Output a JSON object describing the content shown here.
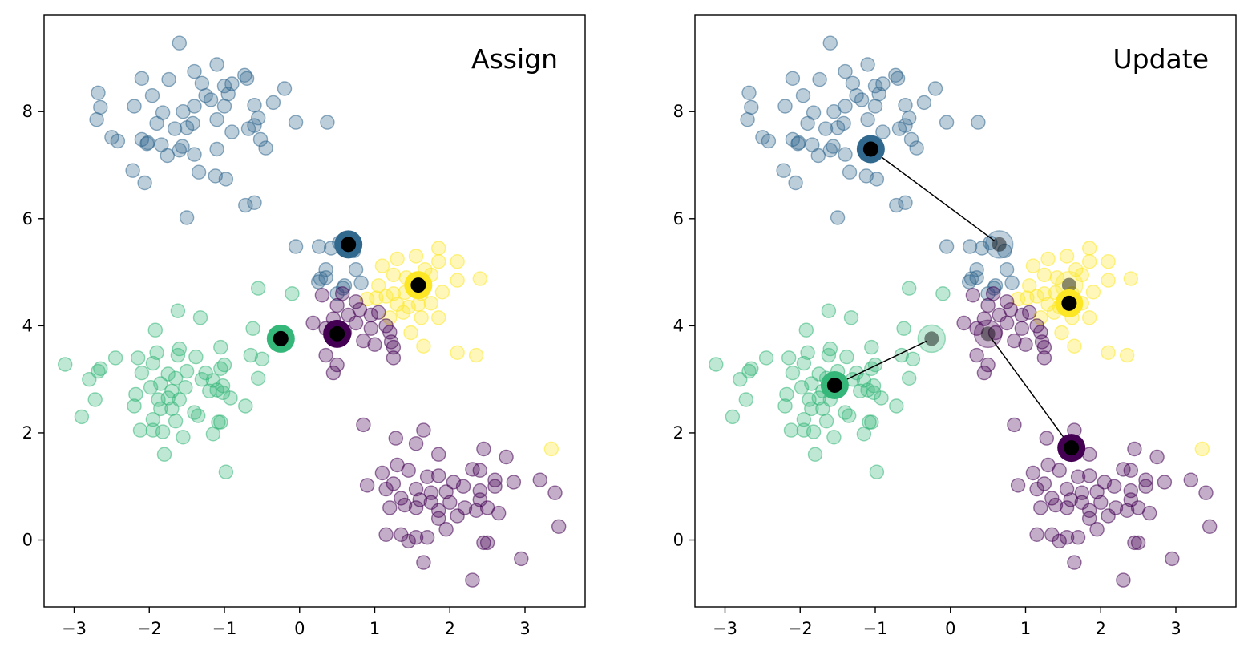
{
  "chart_data": [
    {
      "type": "scatter",
      "title": "Assign",
      "xlim": [
        -3.4,
        3.8
      ],
      "ylim": [
        -1.25,
        9.8
      ],
      "xticks": [
        -3,
        -2,
        -1,
        0,
        1,
        2,
        3
      ],
      "yticks": [
        0,
        2,
        4,
        6,
        8
      ],
      "xtick_labels": [
        "−3",
        "−2",
        "−1",
        "0",
        "1",
        "2",
        "3"
      ],
      "ytick_labels": [
        "0",
        "2",
        "4",
        "6",
        "8"
      ],
      "grid": false,
      "centroids": [
        {
          "cluster": 0,
          "x": 0.5,
          "y": 3.85
        },
        {
          "cluster": 1,
          "x": 0.65,
          "y": 5.52
        },
        {
          "cluster": 2,
          "x": -0.25,
          "y": 3.76
        },
        {
          "cluster": 3,
          "x": 1.58,
          "y": 4.76
        }
      ]
    },
    {
      "type": "scatter",
      "title": "Update",
      "xlim": [
        -3.4,
        3.8
      ],
      "ylim": [
        -1.25,
        9.8
      ],
      "xticks": [
        -3,
        -2,
        -1,
        0,
        1,
        2,
        3
      ],
      "yticks": [
        0,
        2,
        4,
        6,
        8
      ],
      "xtick_labels": [
        "−3",
        "−2",
        "−1",
        "0",
        "1",
        "2",
        "3"
      ],
      "ytick_labels": [
        "0",
        "2",
        "4",
        "6",
        "8"
      ],
      "grid": false,
      "old_centroids": [
        {
          "cluster": 0,
          "x": 0.5,
          "y": 3.85
        },
        {
          "cluster": 1,
          "x": 0.65,
          "y": 5.52
        },
        {
          "cluster": 2,
          "x": -0.25,
          "y": 3.76
        },
        {
          "cluster": 3,
          "x": 1.58,
          "y": 4.76
        }
      ],
      "centroids": [
        {
          "cluster": 0,
          "x": 1.61,
          "y": 1.72
        },
        {
          "cluster": 1,
          "x": -1.06,
          "y": 7.3
        },
        {
          "cluster": 2,
          "x": -1.54,
          "y": 2.89
        },
        {
          "cluster": 3,
          "x": 1.58,
          "y": 4.42
        }
      ]
    }
  ],
  "cluster_colors": [
    "#440154",
    "#31688e",
    "#35b779",
    "#fde725"
  ],
  "points": [
    {
      "c": 1,
      "pts": [
        [
          -1.6,
          9.28
        ],
        [
          -1.1,
          8.88
        ],
        [
          -1.4,
          8.75
        ],
        [
          -2.1,
          8.62
        ],
        [
          -1.74,
          8.6
        ],
        [
          -0.73,
          8.68
        ],
        [
          -0.7,
          8.62
        ],
        [
          -2.68,
          8.35
        ],
        [
          -1.3,
          8.53
        ],
        [
          -1.0,
          8.48
        ],
        [
          -0.9,
          8.52
        ],
        [
          -0.2,
          8.43
        ],
        [
          -2.65,
          8.08
        ],
        [
          -2.2,
          8.1
        ],
        [
          -1.96,
          8.3
        ],
        [
          -1.25,
          8.3
        ],
        [
          -0.95,
          8.33
        ],
        [
          -0.6,
          8.12
        ],
        [
          -0.35,
          8.17
        ],
        [
          -2.7,
          7.85
        ],
        [
          -1.82,
          7.98
        ],
        [
          -1.55,
          8.0
        ],
        [
          -1.4,
          8.1
        ],
        [
          -1.18,
          8.22
        ],
        [
          -1.0,
          8.1
        ],
        [
          -0.55,
          7.88
        ],
        [
          -0.05,
          7.8
        ],
        [
          0.37,
          7.8
        ],
        [
          -1.9,
          7.78
        ],
        [
          -1.66,
          7.68
        ],
        [
          -1.5,
          7.7
        ],
        [
          -1.42,
          7.78
        ],
        [
          -1.1,
          7.85
        ],
        [
          -0.9,
          7.62
        ],
        [
          -0.68,
          7.68
        ],
        [
          -0.6,
          7.74
        ],
        [
          -2.5,
          7.52
        ],
        [
          -2.42,
          7.45
        ],
        [
          -2.1,
          7.48
        ],
        [
          -2.02,
          7.42
        ],
        [
          -1.84,
          7.38
        ],
        [
          -1.56,
          7.35
        ],
        [
          -1.1,
          7.3
        ],
        [
          -0.52,
          7.48
        ],
        [
          -0.45,
          7.32
        ],
        [
          -2.03,
          7.4
        ],
        [
          -1.76,
          7.18
        ],
        [
          -1.6,
          7.28
        ],
        [
          -1.4,
          7.2
        ],
        [
          -2.22,
          6.9
        ],
        [
          -1.34,
          6.87
        ],
        [
          -1.12,
          6.8
        ],
        [
          -0.98,
          6.74
        ],
        [
          -2.06,
          6.67
        ],
        [
          -0.72,
          6.25
        ],
        [
          -0.6,
          6.3
        ],
        [
          -1.5,
          6.02
        ],
        [
          -0.05,
          5.48
        ],
        [
          0.26,
          5.48
        ],
        [
          0.42,
          5.45
        ],
        [
          0.53,
          5.55
        ],
        [
          0.72,
          5.4
        ],
        [
          0.35,
          5.05
        ],
        [
          0.75,
          5.05
        ],
        [
          0.28,
          4.88
        ],
        [
          0.25,
          4.82
        ],
        [
          0.6,
          4.75
        ],
        [
          0.82,
          4.8
        ],
        [
          0.35,
          4.9
        ],
        [
          0.5,
          4.6
        ],
        [
          0.58,
          4.7
        ]
      ]
    },
    {
      "c": 3,
      "pts": [
        [
          1.85,
          5.45
        ],
        [
          1.55,
          5.3
        ],
        [
          1.3,
          5.25
        ],
        [
          1.85,
          5.2
        ],
        [
          2.1,
          5.2
        ],
        [
          1.1,
          5.12
        ],
        [
          1.25,
          4.95
        ],
        [
          1.42,
          4.9
        ],
        [
          1.67,
          5.05
        ],
        [
          1.75,
          4.95
        ],
        [
          2.1,
          4.85
        ],
        [
          2.4,
          4.88
        ],
        [
          1.05,
          4.75
        ],
        [
          1.25,
          4.6
        ],
        [
          1.4,
          4.62
        ],
        [
          1.62,
          4.6
        ],
        [
          1.9,
          4.63
        ],
        [
          0.9,
          4.5
        ],
        [
          1.02,
          4.52
        ],
        [
          1.15,
          4.55
        ],
        [
          1.3,
          4.4
        ],
        [
          1.45,
          4.35
        ],
        [
          1.58,
          4.4
        ],
        [
          1.75,
          4.42
        ],
        [
          1.38,
          4.25
        ],
        [
          1.2,
          4.15
        ],
        [
          1.62,
          4.15
        ],
        [
          1.85,
          4.15
        ],
        [
          1.48,
          3.87
        ],
        [
          1.65,
          3.62
        ],
        [
          2.1,
          3.5
        ],
        [
          2.35,
          3.45
        ],
        [
          3.35,
          1.7
        ]
      ]
    },
    {
      "c": 0,
      "pts": [
        [
          0.3,
          4.57
        ],
        [
          0.57,
          4.6
        ],
        [
          0.75,
          4.45
        ],
        [
          0.5,
          4.38
        ],
        [
          0.65,
          4.2
        ],
        [
          0.8,
          4.3
        ],
        [
          0.95,
          4.2
        ],
        [
          1.05,
          4.25
        ],
        [
          0.45,
          4.13
        ],
        [
          0.75,
          4.05
        ],
        [
          1.15,
          4.0
        ],
        [
          0.18,
          4.05
        ],
        [
          0.35,
          3.95
        ],
        [
          0.6,
          3.87
        ],
        [
          0.95,
          3.95
        ],
        [
          1.2,
          3.88
        ],
        [
          1.22,
          3.7
        ],
        [
          0.85,
          3.72
        ],
        [
          1.0,
          3.65
        ],
        [
          1.25,
          3.6
        ],
        [
          0.35,
          3.45
        ],
        [
          0.5,
          3.27
        ],
        [
          0.45,
          3.12
        ],
        [
          1.25,
          3.4
        ],
        [
          0.85,
          2.15
        ],
        [
          1.65,
          2.05
        ],
        [
          1.28,
          1.9
        ],
        [
          1.55,
          1.8
        ],
        [
          1.85,
          1.6
        ],
        [
          2.45,
          1.7
        ],
        [
          2.3,
          1.32
        ],
        [
          2.4,
          1.3
        ],
        [
          2.75,
          1.55
        ],
        [
          1.3,
          1.4
        ],
        [
          1.45,
          1.3
        ],
        [
          1.1,
          1.25
        ],
        [
          1.7,
          1.18
        ],
        [
          1.85,
          1.2
        ],
        [
          2.05,
          1.08
        ],
        [
          2.6,
          1.12
        ],
        [
          2.85,
          1.08
        ],
        [
          0.9,
          1.02
        ],
        [
          1.25,
          1.05
        ],
        [
          1.15,
          0.95
        ],
        [
          1.55,
          0.95
        ],
        [
          1.75,
          0.88
        ],
        [
          1.95,
          0.9
        ],
        [
          2.18,
          1.0
        ],
        [
          2.4,
          0.92
        ],
        [
          2.6,
          1.0
        ],
        [
          1.35,
          0.78
        ],
        [
          1.6,
          0.75
        ],
        [
          1.75,
          0.7
        ],
        [
          2.0,
          0.7
        ],
        [
          2.2,
          0.6
        ],
        [
          2.4,
          0.75
        ],
        [
          1.2,
          0.6
        ],
        [
          1.4,
          0.65
        ],
        [
          1.55,
          0.6
        ],
        [
          1.85,
          0.55
        ],
        [
          2.35,
          0.55
        ],
        [
          2.5,
          0.6
        ],
        [
          2.65,
          0.5
        ],
        [
          3.2,
          1.12
        ],
        [
          3.4,
          0.88
        ],
        [
          1.35,
          0.1
        ],
        [
          1.55,
          0.05
        ],
        [
          1.7,
          0.05
        ],
        [
          1.95,
          0.2
        ],
        [
          1.85,
          0.4
        ],
        [
          2.1,
          0.45
        ],
        [
          1.15,
          0.1
        ],
        [
          1.45,
          -0.02
        ],
        [
          2.45,
          -0.05
        ],
        [
          2.5,
          -0.05
        ],
        [
          3.45,
          0.25
        ],
        [
          2.95,
          -0.35
        ],
        [
          1.65,
          -0.42
        ],
        [
          2.3,
          -0.75
        ]
      ]
    },
    {
      "c": 2,
      "pts": [
        [
          -0.55,
          4.7
        ],
        [
          -0.1,
          4.6
        ],
        [
          -1.62,
          4.28
        ],
        [
          -1.32,
          4.15
        ],
        [
          -1.92,
          3.92
        ],
        [
          -0.62,
          3.95
        ],
        [
          -1.6,
          3.57
        ],
        [
          -1.05,
          3.6
        ],
        [
          -1.9,
          3.5
        ],
        [
          -1.62,
          3.45
        ],
        [
          -1.38,
          3.42
        ],
        [
          -0.65,
          3.45
        ],
        [
          -2.45,
          3.4
        ],
        [
          -2.15,
          3.4
        ],
        [
          -1.95,
          3.3
        ],
        [
          -0.5,
          3.38
        ],
        [
          -1.0,
          3.27
        ],
        [
          -3.12,
          3.28
        ],
        [
          -2.65,
          3.2
        ],
        [
          -2.1,
          3.12
        ],
        [
          -1.75,
          3.1
        ],
        [
          -1.5,
          3.15
        ],
        [
          -1.25,
          3.12
        ],
        [
          -1.05,
          3.2
        ],
        [
          -2.68,
          3.15
        ],
        [
          -1.65,
          3.02
        ],
        [
          -1.3,
          3.0
        ],
        [
          -1.15,
          2.98
        ],
        [
          -0.55,
          3.02
        ],
        [
          -2.8,
          3.0
        ],
        [
          -1.85,
          2.92
        ],
        [
          -1.98,
          2.85
        ],
        [
          -1.7,
          2.78
        ],
        [
          -1.52,
          2.85
        ],
        [
          -1.1,
          2.8
        ],
        [
          -1.02,
          2.88
        ],
        [
          -1.2,
          2.78
        ],
        [
          -1.75,
          2.65
        ],
        [
          -0.92,
          2.65
        ],
        [
          -2.18,
          2.72
        ],
        [
          -2.72,
          2.62
        ],
        [
          -1.88,
          2.62
        ],
        [
          -1.6,
          2.62
        ],
        [
          -1.02,
          2.75
        ],
        [
          -2.2,
          2.5
        ],
        [
          -1.85,
          2.45
        ],
        [
          -1.7,
          2.45
        ],
        [
          -1.4,
          2.38
        ],
        [
          -0.72,
          2.5
        ],
        [
          -2.9,
          2.3
        ],
        [
          -1.95,
          2.25
        ],
        [
          -1.65,
          2.22
        ],
        [
          -1.35,
          2.32
        ],
        [
          -1.08,
          2.2
        ],
        [
          -1.05,
          2.2
        ],
        [
          -2.12,
          2.05
        ],
        [
          -1.95,
          2.05
        ],
        [
          -1.55,
          1.92
        ],
        [
          -1.82,
          2.02
        ],
        [
          -1.15,
          1.98
        ],
        [
          -1.8,
          1.6
        ],
        [
          -0.98,
          1.27
        ]
      ]
    }
  ]
}
